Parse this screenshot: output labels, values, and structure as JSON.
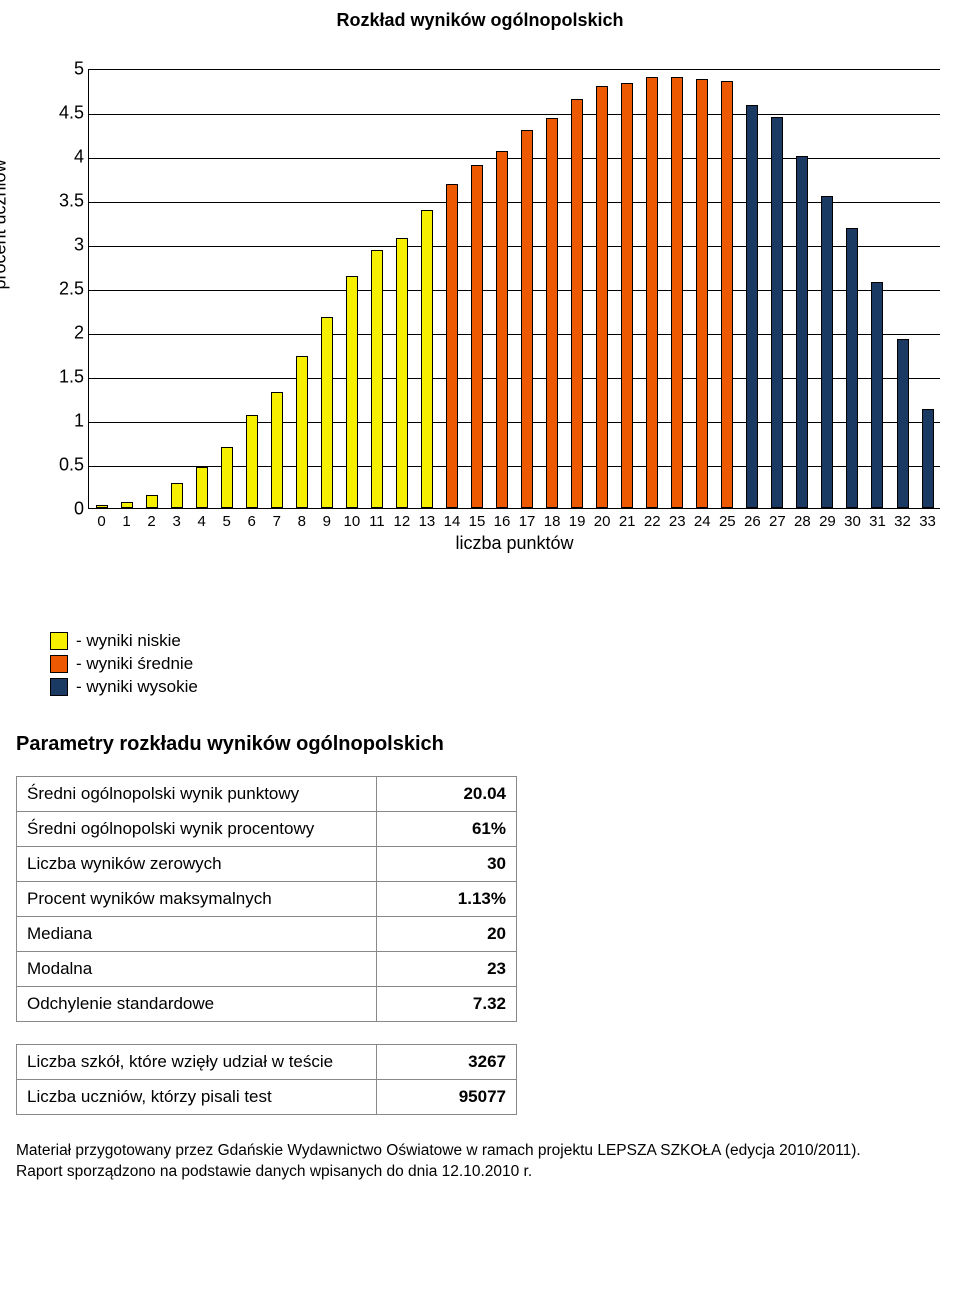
{
  "chart": {
    "title": "Rozkład wyników ogólnopolskich",
    "y_label": "procent uczniów",
    "x_label": "liczba punktów",
    "ymin": 0,
    "ymax": 5,
    "ytick_step": 0.5,
    "yticks": [
      0,
      0.5,
      1,
      1.5,
      2,
      2.5,
      3,
      3.5,
      4,
      4.5,
      5
    ],
    "colors": {
      "low": "#f7ef00",
      "mid": "#ed5900",
      "high": "#1b3a63",
      "border": "#000000",
      "grid": "#000000",
      "background": "#ffffff"
    },
    "bars": [
      {
        "x": 0,
        "value": 0.03,
        "group": "low"
      },
      {
        "x": 1,
        "value": 0.07,
        "group": "low"
      },
      {
        "x": 2,
        "value": 0.15,
        "group": "low"
      },
      {
        "x": 3,
        "value": 0.28,
        "group": "low"
      },
      {
        "x": 4,
        "value": 0.47,
        "group": "low"
      },
      {
        "x": 5,
        "value": 0.7,
        "group": "low"
      },
      {
        "x": 6,
        "value": 1.06,
        "group": "low"
      },
      {
        "x": 7,
        "value": 1.32,
        "group": "low"
      },
      {
        "x": 8,
        "value": 1.74,
        "group": "low"
      },
      {
        "x": 9,
        "value": 2.18,
        "group": "low"
      },
      {
        "x": 10,
        "value": 2.65,
        "group": "low"
      },
      {
        "x": 11,
        "value": 2.95,
        "group": "low"
      },
      {
        "x": 12,
        "value": 3.08,
        "group": "low"
      },
      {
        "x": 13,
        "value": 3.4,
        "group": "low"
      },
      {
        "x": 14,
        "value": 3.7,
        "group": "mid"
      },
      {
        "x": 15,
        "value": 3.91,
        "group": "mid"
      },
      {
        "x": 16,
        "value": 4.08,
        "group": "mid"
      },
      {
        "x": 17,
        "value": 4.32,
        "group": "mid"
      },
      {
        "x": 18,
        "value": 4.45,
        "group": "mid"
      },
      {
        "x": 19,
        "value": 4.67,
        "group": "mid"
      },
      {
        "x": 20,
        "value": 4.82,
        "group": "mid"
      },
      {
        "x": 21,
        "value": 4.85,
        "group": "mid"
      },
      {
        "x": 22,
        "value": 4.92,
        "group": "mid"
      },
      {
        "x": 23,
        "value": 4.92,
        "group": "mid"
      },
      {
        "x": 24,
        "value": 4.9,
        "group": "mid"
      },
      {
        "x": 25,
        "value": 4.87,
        "group": "mid"
      },
      {
        "x": 26,
        "value": 4.6,
        "group": "high"
      },
      {
        "x": 27,
        "value": 4.46,
        "group": "high"
      },
      {
        "x": 28,
        "value": 4.02,
        "group": "high"
      },
      {
        "x": 29,
        "value": 3.56,
        "group": "high"
      },
      {
        "x": 30,
        "value": 3.2,
        "group": "high"
      },
      {
        "x": 31,
        "value": 2.58,
        "group": "high"
      },
      {
        "x": 32,
        "value": 1.93,
        "group": "high"
      },
      {
        "x": 33,
        "value": 1.13,
        "group": "high"
      }
    ]
  },
  "legend": {
    "low": "- wyniki niskie",
    "mid": "- wyniki średnie",
    "high": "- wyniki wysokie"
  },
  "params_heading": "Parametry rozkładu wyników ogólnopolskich",
  "params_table": [
    {
      "label": "Średni ogólnopolski wynik punktowy",
      "value": "20.04"
    },
    {
      "label": "Średni ogólnopolski wynik procentowy",
      "value": "61%"
    },
    {
      "label": "Liczba wyników zerowych",
      "value": "30"
    },
    {
      "label": "Procent wyników maksymalnych",
      "value": "1.13%"
    },
    {
      "label": "Mediana",
      "value": "20"
    },
    {
      "label": "Modalna",
      "value": "23"
    },
    {
      "label": "Odchylenie standardowe",
      "value": "7.32"
    }
  ],
  "counts_table": [
    {
      "label": "Liczba szkół, które wzięły udział w teście",
      "value": "3267"
    },
    {
      "label": "Liczba uczniów, którzy pisali test",
      "value": "95077"
    }
  ],
  "footer": {
    "line1": "Materiał przygotowany przez Gdańskie Wydawnictwo Oświatowe w ramach projektu LEPSZA SZKOŁA (edycja 2010/2011).",
    "line2": "Raport sporządzono na podstawie danych wpisanych do dnia 12.10.2010 r."
  }
}
